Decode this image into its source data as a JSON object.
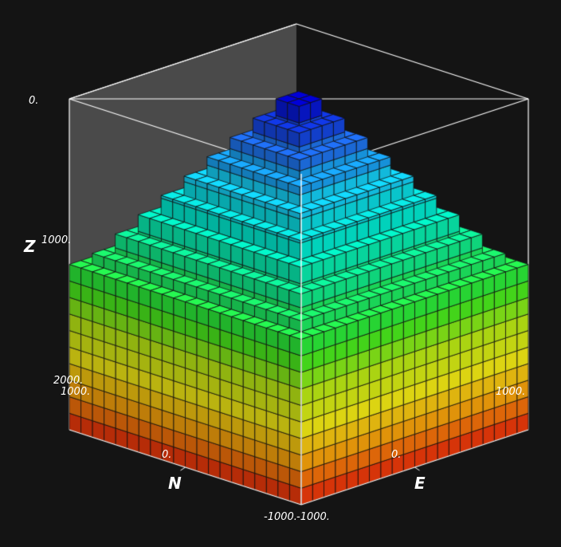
{
  "colors": {
    "background": "#141414",
    "box_line": "#ffffff",
    "back_wall": "#4a4a4a",
    "cell_edge": "#111111"
  },
  "chart_data": {
    "type": "3d-voxel",
    "title": "",
    "axes": {
      "N": {
        "label": "N",
        "range": [
          -1000,
          1000
        ],
        "ticks": [
          "1000.",
          "0.",
          "-1000."
        ]
      },
      "E": {
        "label": "E",
        "range": [
          -1000,
          1000
        ],
        "ticks": [
          "-1000.",
          "0.",
          "1000."
        ]
      },
      "Z": {
        "label": "Z",
        "range": [
          0,
          2000
        ],
        "ticks": [
          "0.",
          "1000.",
          "2000."
        ],
        "note": "depth increases downward"
      }
    },
    "grid_size": [
      20,
      20,
      20
    ],
    "block_top_depth": 1000,
    "dome": {
      "peak_depth": 0,
      "top_width_cells": 3,
      "base_width_cells": 17,
      "steps": 8
    },
    "colorscale": [
      "#0000c8",
      "#1e64e6",
      "#14c8f0",
      "#00e6c8",
      "#14e678",
      "#32e61e",
      "#b4e614",
      "#f0e614",
      "#f5960a",
      "#e61e0a"
    ]
  }
}
